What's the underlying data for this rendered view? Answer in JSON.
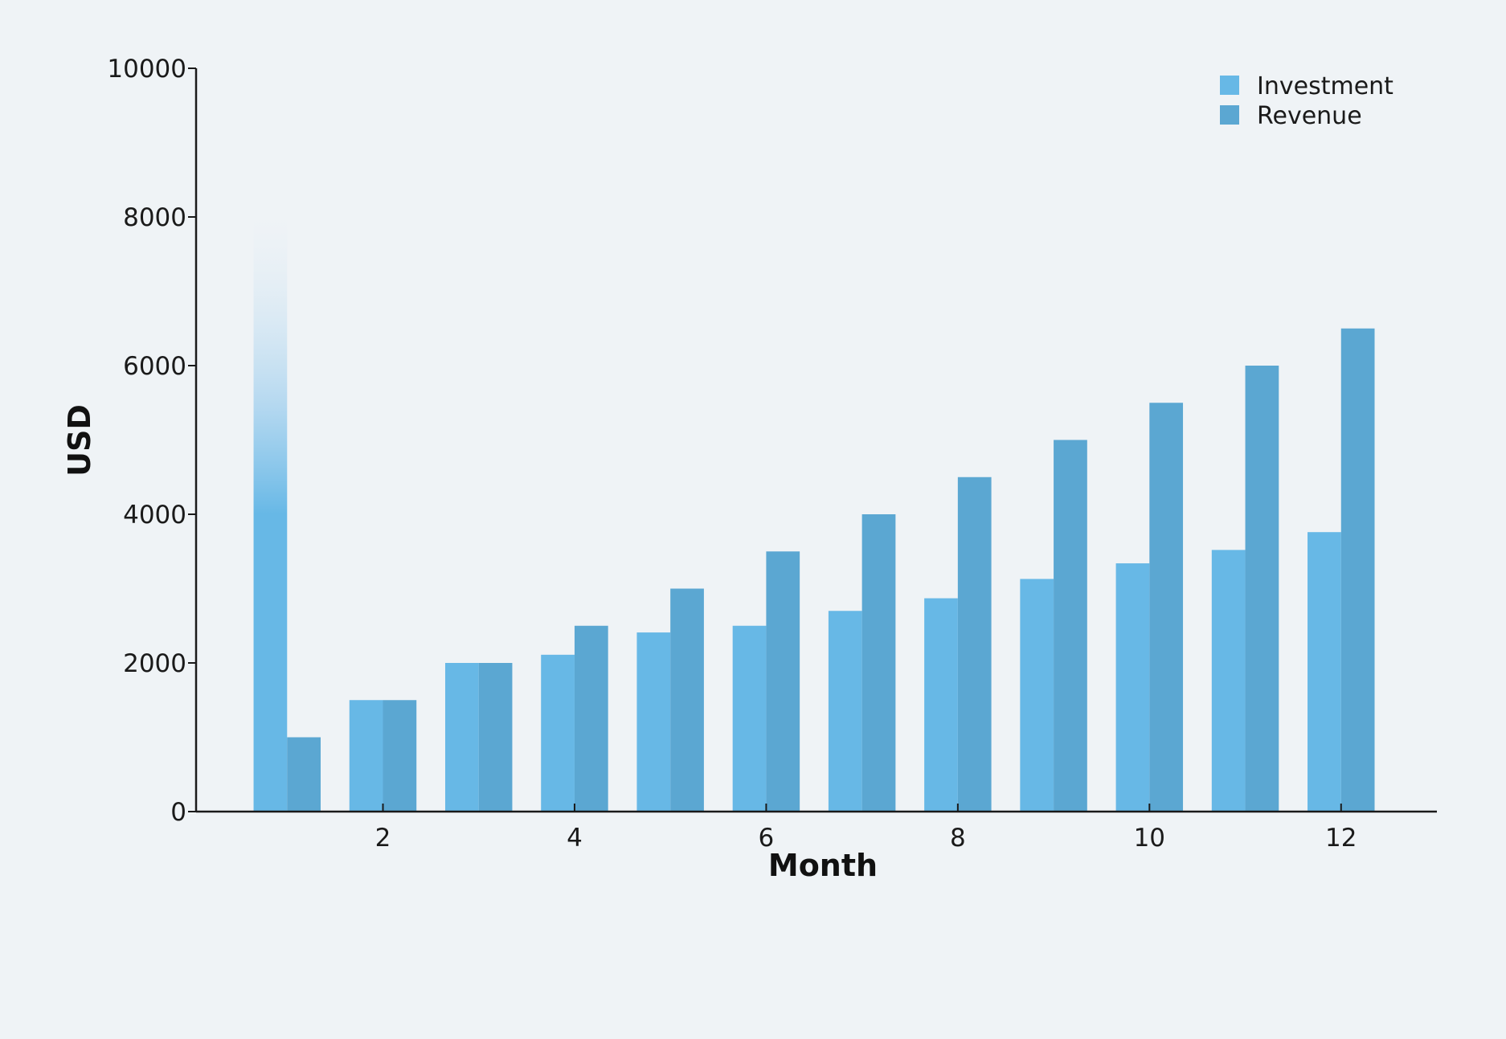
{
  "chart_data": {
    "type": "bar",
    "title": "",
    "xlabel": "Month",
    "ylabel": "USD",
    "categories": [
      1,
      2,
      3,
      4,
      5,
      6,
      7,
      8,
      9,
      10,
      11,
      12
    ],
    "x_ticks": [
      2,
      4,
      6,
      8,
      10,
      12
    ],
    "x_tick_labels": [
      "2",
      "4",
      "6",
      "8",
      "10",
      "12"
    ],
    "y_ticks": [
      0,
      2000,
      4000,
      6000,
      8000,
      10000
    ],
    "y_tick_labels": [
      "0",
      "2000",
      "4000",
      "6000",
      "8000",
      "10000"
    ],
    "ylim": [
      0,
      10000
    ],
    "xlim": [
      0.05,
      13.0
    ],
    "series": [
      {
        "name": "Investment",
        "color": "#67b8e6",
        "values": [
          8000,
          1500,
          2000,
          2110,
          2410,
          2500,
          2700,
          2870,
          3130,
          3340,
          3520,
          3760
        ]
      },
      {
        "name": "Revenue",
        "color": "#5ba7d2",
        "values": [
          1000,
          1500,
          2000,
          2500,
          3000,
          3500,
          4000,
          4500,
          5000,
          5500,
          6000,
          6500
        ]
      }
    ],
    "legend_position": "top-right",
    "grid": false
  }
}
